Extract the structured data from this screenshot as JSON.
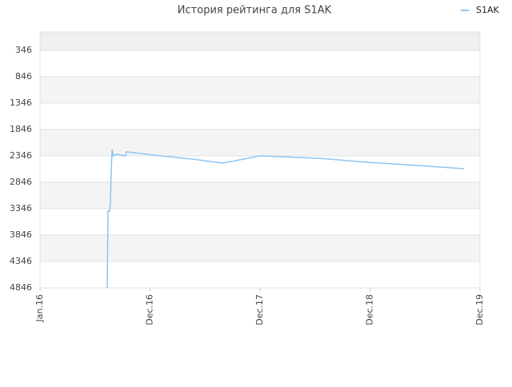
{
  "chart_data": {
    "type": "line",
    "title": "История рейтинга для S1AK",
    "x": [
      2016.611,
      2016.618,
      2016.633,
      2016.64,
      2016.647,
      2016.655,
      2016.669,
      2016.691,
      2016.778,
      2016.785,
      2016.836,
      2017.091,
      2017.382,
      2017.658,
      2017.818,
      2018.0,
      2018.545,
      2018.982,
      2019.418,
      2019.855
    ],
    "series": [
      {
        "name": "S1AK",
        "color": "#90c4f0",
        "values": [
          4846,
          3390,
          3390,
          3255,
          2650,
          2226,
          2346,
          2316,
          2346,
          2270,
          2280,
          2346,
          2407,
          2483,
          2422,
          2346,
          2392,
          2468,
          2528,
          2589
        ]
      }
    ],
    "xlim": [
      2016,
      2020
    ],
    "xticks": [
      {
        "value": 2016,
        "label": "Jan.16"
      },
      {
        "value": 2017,
        "label": "Dec.16"
      },
      {
        "value": 2018,
        "label": "Dec.17"
      },
      {
        "value": 2019,
        "label": "Dec.18"
      },
      {
        "value": 2020,
        "label": "Dec.19"
      }
    ],
    "ylim": [
      4846,
      0
    ],
    "yticks": [
      346,
      846,
      1346,
      1846,
      2346,
      2846,
      3346,
      3846,
      4346,
      4846
    ],
    "grid": true,
    "legend": "top-right"
  }
}
